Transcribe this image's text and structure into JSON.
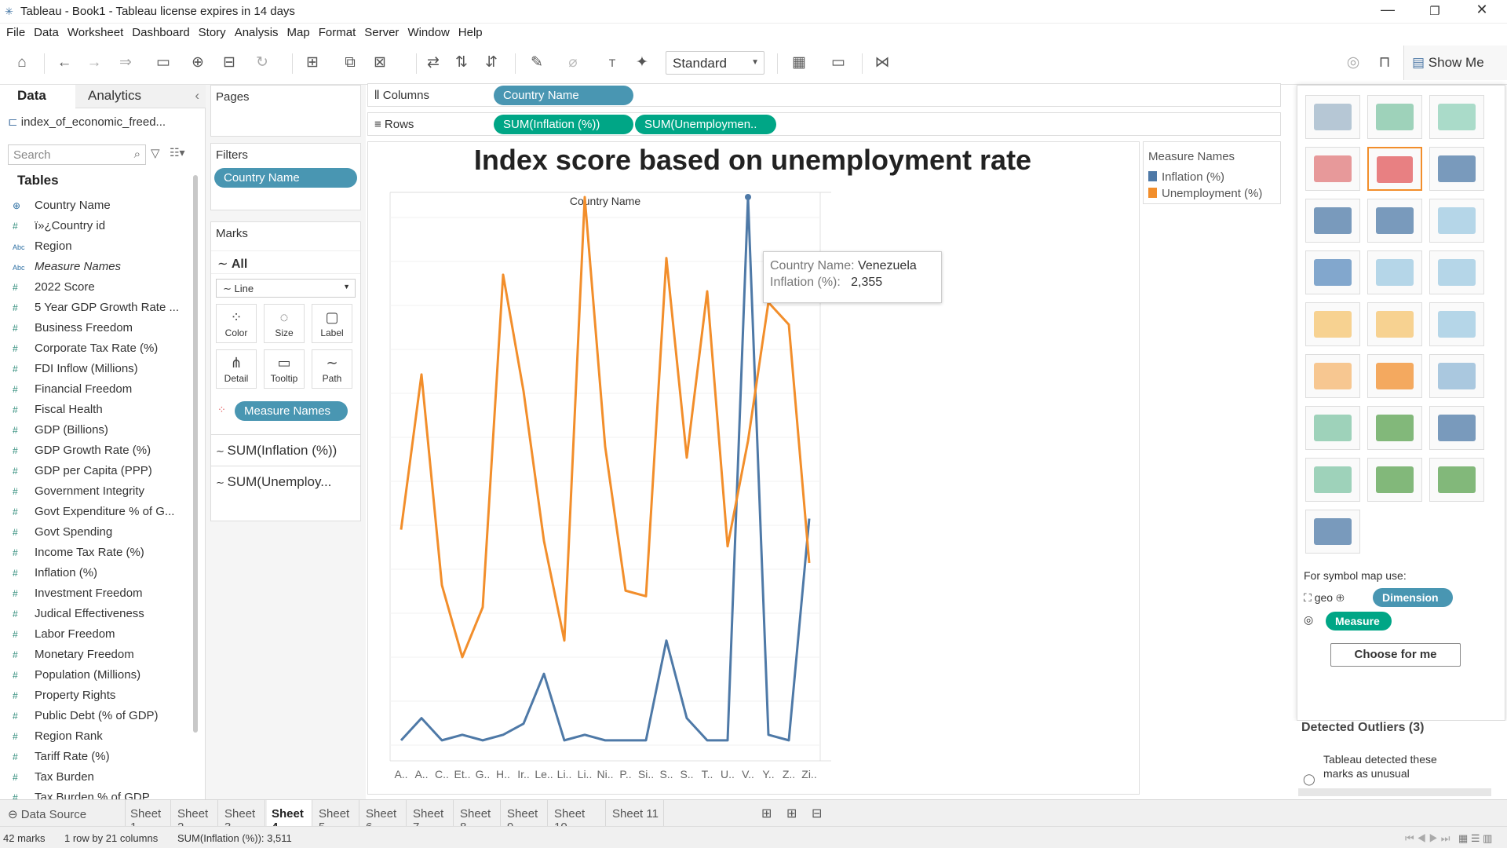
{
  "window": {
    "title": "Tableau - Book1 - Tableau license expires in 14 days"
  },
  "menu": [
    "File",
    "Data",
    "Worksheet",
    "Dashboard",
    "Story",
    "Analysis",
    "Map",
    "Format",
    "Server",
    "Window",
    "Help"
  ],
  "toolbar": {
    "fit_value": "Standard",
    "show_me_label": "Show Me"
  },
  "left": {
    "tab_data": "Data",
    "tab_analytics": "Analytics",
    "datasource": "index_of_economic_freed...",
    "search_placeholder": "Search",
    "tables_heading": "Tables",
    "fields": [
      {
        "icon": "globe",
        "label": "Country Name",
        "italic": false
      },
      {
        "icon": "#",
        "label": "ï»¿Country id",
        "italic": false
      },
      {
        "icon": "Abc",
        "label": "Region",
        "italic": false
      },
      {
        "icon": "Abc",
        "label": "Measure Names",
        "italic": true
      },
      {
        "icon": "#",
        "label": "2022 Score",
        "italic": false
      },
      {
        "icon": "#",
        "label": "5 Year GDP Growth Rate ...",
        "italic": false
      },
      {
        "icon": "#",
        "label": "Business Freedom",
        "italic": false
      },
      {
        "icon": "#",
        "label": "Corporate Tax Rate (%)",
        "italic": false
      },
      {
        "icon": "#",
        "label": "FDI Inflow (Millions)",
        "italic": false
      },
      {
        "icon": "#",
        "label": "Financial Freedom",
        "italic": false
      },
      {
        "icon": "#",
        "label": "Fiscal Health",
        "italic": false
      },
      {
        "icon": "#",
        "label": "GDP (Billions)",
        "italic": false
      },
      {
        "icon": "#",
        "label": "GDP Growth Rate (%)",
        "italic": false
      },
      {
        "icon": "#",
        "label": "GDP per Capita (PPP)",
        "italic": false
      },
      {
        "icon": "#",
        "label": "Government Integrity",
        "italic": false
      },
      {
        "icon": "#",
        "label": "Govt Expenditure % of G...",
        "italic": false
      },
      {
        "icon": "#",
        "label": "Govt Spending",
        "italic": false
      },
      {
        "icon": "#",
        "label": "Income Tax Rate (%)",
        "italic": false
      },
      {
        "icon": "#",
        "label": "Inflation (%)",
        "italic": false
      },
      {
        "icon": "#",
        "label": "Investment Freedom",
        "italic": false
      },
      {
        "icon": "#",
        "label": "Judical Effectiveness",
        "italic": false
      },
      {
        "icon": "#",
        "label": "Labor Freedom",
        "italic": false
      },
      {
        "icon": "#",
        "label": "Monetary Freedom",
        "italic": false
      },
      {
        "icon": "#",
        "label": "Population (Millions)",
        "italic": false
      },
      {
        "icon": "#",
        "label": "Property Rights",
        "italic": false
      },
      {
        "icon": "#",
        "label": "Public Debt (% of GDP)",
        "italic": false
      },
      {
        "icon": "#",
        "label": "Region Rank",
        "italic": false
      },
      {
        "icon": "#",
        "label": "Tariff Rate (%)",
        "italic": false
      },
      {
        "icon": "#",
        "label": "Tax Burden",
        "italic": false
      },
      {
        "icon": "#",
        "label": "Tax Burden % of GDP",
        "italic": false
      }
    ]
  },
  "shelves": {
    "pages": "Pages",
    "filters": "Filters",
    "filter_pill": "Country Name",
    "marks": "Marks",
    "marks_all": "All",
    "mark_type": "Line",
    "mark_buttons": [
      "Color",
      "Size",
      "Label",
      "Detail",
      "Tooltip",
      "Path"
    ],
    "measure_names_pill": "Measure Names",
    "measure_cards": [
      "SUM(Inflation (%))",
      "SUM(Unemploy..."
    ],
    "columns_label": "Columns",
    "columns_pill": "Country Name",
    "rows_label": "Rows",
    "rows_pills": [
      "SUM(Inflation (%))",
      "SUM(Unemploymen.."
    ]
  },
  "legend": {
    "title": "Measure Names",
    "items": [
      {
        "label": "Inflation (%)",
        "color": "#4e79a7"
      },
      {
        "label": "Unemployment (%)",
        "color": "#f28e2b"
      }
    ]
  },
  "tooltip": {
    "k1": "Country Name:",
    "v1": "Venezuela",
    "k2": "Inflation (%):",
    "v2": "2,355"
  },
  "chart_data": {
    "type": "line",
    "title": "Index score based on unemployment rate",
    "xlabel": "Country Name",
    "categories": [
      "A..",
      "A..",
      "C..",
      "Et..",
      "G..",
      "H..",
      "Ir..",
      "Le..",
      "Li..",
      "Li..",
      "Ni..",
      "P..",
      "Si..",
      "S..",
      "S..",
      "T..",
      "U..",
      "V..",
      "Y..",
      "Z..",
      "Zi.."
    ],
    "series": [
      {
        "name": "Inflation (%)",
        "color": "#4e79a7",
        "values": [
          0.02,
          0.06,
          0.02,
          0.03,
          0.02,
          0.03,
          0.05,
          0.14,
          0.02,
          0.03,
          0.02,
          0.02,
          0.02,
          0.2,
          0.06,
          0.02,
          0.02,
          1.0,
          0.03,
          0.02,
          0.42
        ]
      },
      {
        "name": "Unemployment (%)",
        "color": "#f28e2b",
        "values": [
          0.4,
          0.68,
          0.3,
          0.17,
          0.26,
          0.86,
          0.65,
          0.38,
          0.2,
          1.0,
          0.55,
          0.29,
          0.28,
          0.89,
          0.53,
          0.83,
          0.37,
          0.56,
          0.81,
          0.77,
          0.34
        ]
      }
    ]
  },
  "showme": {
    "symbol_note": "For symbol map use:",
    "geo": "geo",
    "dimension": "Dimension",
    "measure": "Measure",
    "choose": "Choose for me",
    "outliers_h": "Detected Outliers (3)",
    "outliers_text": "Tableau detected these marks as unusual"
  },
  "sheets": {
    "datasource": "Data Source",
    "tabs": [
      "Sheet 1",
      "Sheet 2",
      "Sheet 3",
      "Sheet 4",
      "Sheet 5",
      "Sheet 6",
      "Sheet 7",
      "Sheet 8",
      "Sheet 9",
      "Sheet 10",
      "Sheet 11"
    ],
    "active": "Sheet 4"
  },
  "status": {
    "marks": "42 marks",
    "rows": "1 row by 21 columns",
    "sum": "SUM(Inflation (%)): 3,511"
  }
}
